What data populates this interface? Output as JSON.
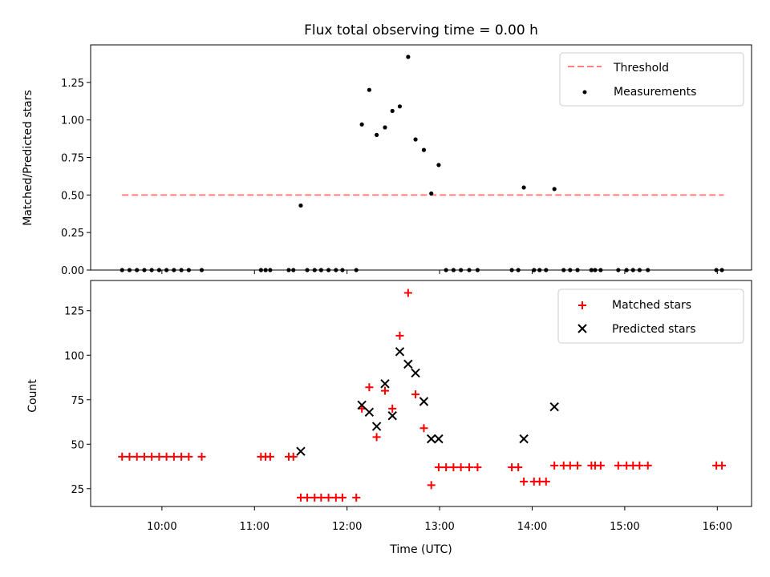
{
  "chart_data": [
    {
      "type": "scatter",
      "title": "Flux total observing time = 0.00 h",
      "xlabel": "",
      "ylabel": "Matched/Predicted stars",
      "ylim": [
        0,
        1.5
      ],
      "y_ticks": [
        "0.00",
        "0.25",
        "0.50",
        "0.75",
        "1.00",
        "1.25"
      ],
      "y_tick_values": [
        0,
        0.25,
        0.5,
        0.75,
        1.0,
        1.25
      ],
      "legend_position": "top-right",
      "threshold": {
        "name": "Threshold",
        "value": 0.5,
        "x_range": [
          9.57,
          16.07
        ],
        "color": "#ff7f7f"
      },
      "series": [
        {
          "name": "Measurements",
          "color": "#000000",
          "x": [
            9.57,
            9.65,
            9.73,
            9.81,
            9.89,
            9.97,
            10.05,
            10.13,
            10.21,
            10.29,
            10.43,
            11.07,
            11.12,
            11.17,
            11.37,
            11.42,
            11.5,
            11.57,
            11.65,
            11.72,
            11.8,
            11.88,
            11.95,
            12.1,
            12.16,
            12.24,
            12.32,
            12.41,
            12.49,
            12.57,
            12.66,
            12.74,
            12.83,
            12.91,
            12.99,
            13.07,
            13.15,
            13.23,
            13.32,
            13.41,
            13.78,
            13.85,
            13.91,
            14.02,
            14.08,
            14.15,
            14.24,
            14.34,
            14.41,
            14.49,
            14.64,
            14.68,
            14.74,
            14.93,
            15.02,
            15.09,
            15.16,
            15.25,
            15.99,
            16.05
          ],
          "y": [
            0,
            0,
            0,
            0,
            0,
            0,
            0,
            0,
            0,
            0,
            0,
            0,
            0,
            0,
            0,
            0,
            0.43,
            0,
            0,
            0,
            0,
            0,
            0,
            0,
            0.97,
            1.2,
            0.9,
            0.95,
            1.06,
            1.09,
            1.42,
            0.87,
            0.8,
            0.51,
            0.7,
            0,
            0,
            0,
            0,
            0,
            0,
            0,
            0.55,
            0,
            0,
            0,
            0.54,
            0,
            0,
            0,
            0,
            0,
            0,
            0,
            0,
            0,
            0,
            0,
            0,
            0
          ]
        }
      ]
    },
    {
      "type": "scatter",
      "title": "",
      "xlabel": "Time (UTC)",
      "ylabel": "Count",
      "xlim": [
        9.23,
        16.37
      ],
      "x_ticks": [
        "10:00",
        "11:00",
        "12:00",
        "13:00",
        "14:00",
        "15:00",
        "16:00"
      ],
      "x_tick_values": [
        10,
        11,
        12,
        13,
        14,
        15,
        16
      ],
      "ylim": [
        15,
        142
      ],
      "y_ticks": [
        "25",
        "50",
        "75",
        "100",
        "125"
      ],
      "y_tick_values": [
        25,
        50,
        75,
        100,
        125
      ],
      "legend_position": "top-right",
      "series": [
        {
          "name": "Matched stars",
          "marker": "plus",
          "color": "#ff0000",
          "x": [
            9.57,
            9.65,
            9.73,
            9.81,
            9.89,
            9.97,
            10.05,
            10.13,
            10.21,
            10.29,
            10.43,
            11.07,
            11.12,
            11.17,
            11.37,
            11.42,
            11.5,
            11.57,
            11.65,
            11.72,
            11.8,
            11.88,
            11.95,
            12.1,
            12.16,
            12.24,
            12.32,
            12.41,
            12.49,
            12.57,
            12.66,
            12.74,
            12.83,
            12.91,
            12.99,
            13.07,
            13.15,
            13.23,
            13.32,
            13.41,
            13.78,
            13.85,
            13.91,
            14.02,
            14.08,
            14.15,
            14.24,
            14.34,
            14.41,
            14.49,
            14.64,
            14.68,
            14.74,
            14.93,
            15.02,
            15.09,
            15.16,
            15.25,
            15.99,
            16.05
          ],
          "y": [
            43,
            43,
            43,
            43,
            43,
            43,
            43,
            43,
            43,
            43,
            43,
            43,
            43,
            43,
            43,
            43,
            20,
            20,
            20,
            20,
            20,
            20,
            20,
            20,
            70,
            82,
            54,
            80,
            70,
            111,
            135,
            78,
            59,
            27,
            37,
            37,
            37,
            37,
            37,
            37,
            37,
            37,
            29,
            29,
            29,
            29,
            38,
            38,
            38,
            38,
            38,
            38,
            38,
            38,
            38,
            38,
            38,
            38,
            38,
            38
          ]
        },
        {
          "name": "Predicted stars",
          "marker": "x",
          "color": "#000000",
          "x": [
            11.5,
            12.16,
            12.24,
            12.32,
            12.41,
            12.49,
            12.57,
            12.66,
            12.74,
            12.83,
            12.91,
            12.99,
            13.91,
            14.24
          ],
          "y": [
            46,
            72,
            68,
            60,
            84,
            66,
            102,
            95,
            90,
            74,
            53,
            53,
            53,
            71
          ]
        }
      ]
    }
  ]
}
